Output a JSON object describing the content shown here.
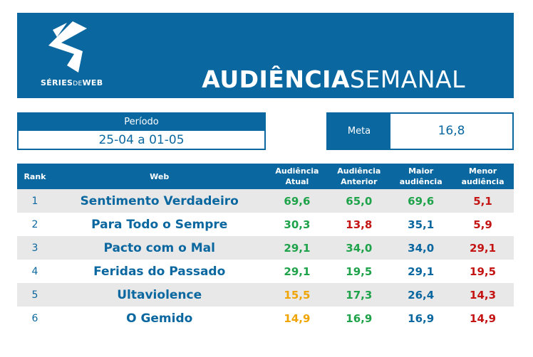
{
  "header": {
    "logo_bold": "SÉRIES",
    "logo_thin": "DE",
    "logo_bold2": "WEB",
    "title_bold": "AUDIÊNCIA",
    "title_light": "SEMANAL"
  },
  "periodo": {
    "label": "Período",
    "value": "25-04 a 01-05"
  },
  "meta": {
    "label": "Meta",
    "value": "16,8"
  },
  "colors": {
    "brand": "#0a679f",
    "good": "#1fa34a",
    "bad": "#c41414",
    "warn": "#f0a400"
  },
  "table": {
    "headers": {
      "rank": "Rank",
      "web": "Web",
      "atual": [
        "Audiência",
        "Atual"
      ],
      "anterior": [
        "Audiência",
        "Anterior"
      ],
      "maior": [
        "Maior",
        "audiência"
      ],
      "menor": [
        "Menor",
        "audiência"
      ]
    },
    "rows": [
      {
        "rank": "1",
        "web": "Sentimento Verdadeiro",
        "atual": "69,6",
        "anterior": "65,0",
        "maior": "69,6",
        "menor": "5,1"
      },
      {
        "rank": "2",
        "web": "Para Todo o Sempre",
        "atual": "30,3",
        "anterior": "13,8",
        "maior": "35,1",
        "menor": "5,9"
      },
      {
        "rank": "3",
        "web": "Pacto com o Mal",
        "atual": "29,1",
        "anterior": "34,0",
        "maior": "34,0",
        "menor": "29,1"
      },
      {
        "rank": "4",
        "web": "Feridas do Passado",
        "atual": "29,1",
        "anterior": "19,5",
        "maior": "29,1",
        "menor": "19,5"
      },
      {
        "rank": "5",
        "web": "Ultaviolence",
        "atual": "15,5",
        "anterior": "17,3",
        "maior": "26,4",
        "menor": "14,3"
      },
      {
        "rank": "6",
        "web": "O Gemido",
        "atual": "14,9",
        "anterior": "16,9",
        "maior": "16,9",
        "menor": "14,9"
      }
    ]
  }
}
